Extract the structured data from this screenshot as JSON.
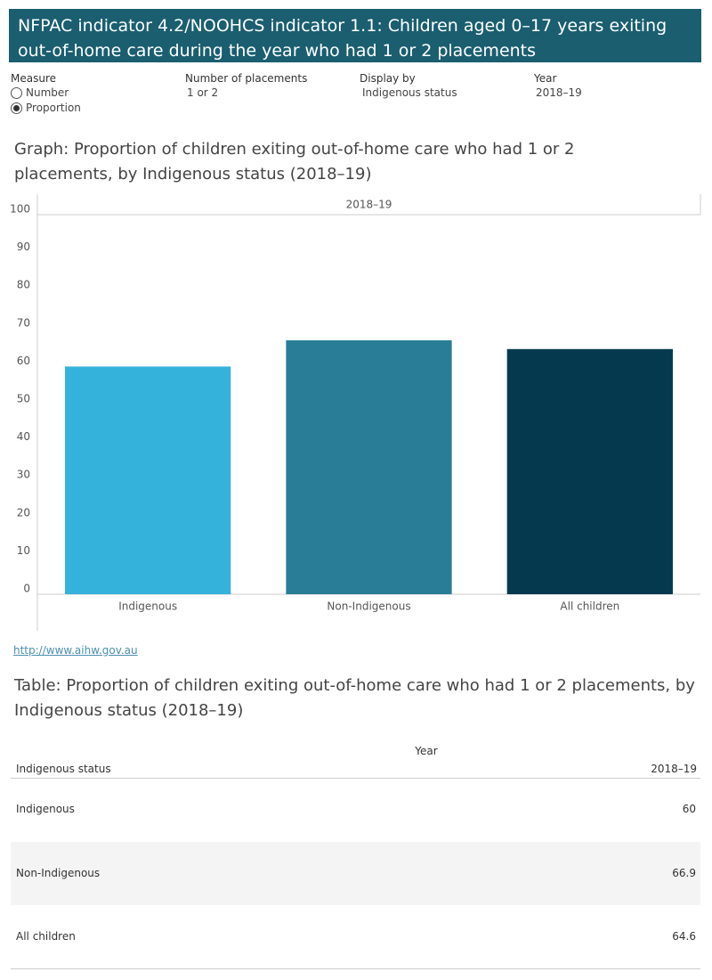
{
  "header": {
    "title": "NFPAC indicator 4.2/NOOHCS indicator 1.1: Children aged 0–17 years exiting out-of-home care during the year who had 1 or 2 placements"
  },
  "controls": [
    {
      "label": "Measure",
      "options": [
        "Number",
        "Proportion"
      ],
      "selected": 1
    },
    {
      "label": "Number of placements",
      "value": "1 or 2"
    },
    {
      "label": "Display by",
      "value": "Indigenous status"
    },
    {
      "label": "Year",
      "value": "2018–19"
    }
  ],
  "chart_data": {
    "type": "bar",
    "title": "Graph: Proportion of children exiting out-of-home care who had 1 or 2 placements, by Indigenous status (2018–19)",
    "panel_label": "2018–19",
    "categories": [
      "Indigenous",
      "Non-Indigenous",
      "All children"
    ],
    "values": [
      60,
      66.9,
      64.6
    ],
    "colors": [
      "#35b2dc",
      "#2a7d96",
      "#053a4e"
    ],
    "ylim": [
      0,
      100
    ],
    "yticks": [
      0,
      10,
      20,
      30,
      40,
      50,
      60,
      70,
      80,
      90,
      100
    ],
    "grid": false
  },
  "link": "http://www.aihw.gov.au",
  "table": {
    "title": "Table: Proportion of children exiting out-of-home care who had 1 or 2 placements, by Indigenous status (2018–19)",
    "column_group": "Year",
    "headers": [
      "Indigenous status",
      "2018–19"
    ],
    "rows": [
      [
        "Indigenous",
        60
      ],
      [
        "Non-Indigenous",
        66.9
      ],
      [
        "All children",
        64.6
      ]
    ]
  }
}
